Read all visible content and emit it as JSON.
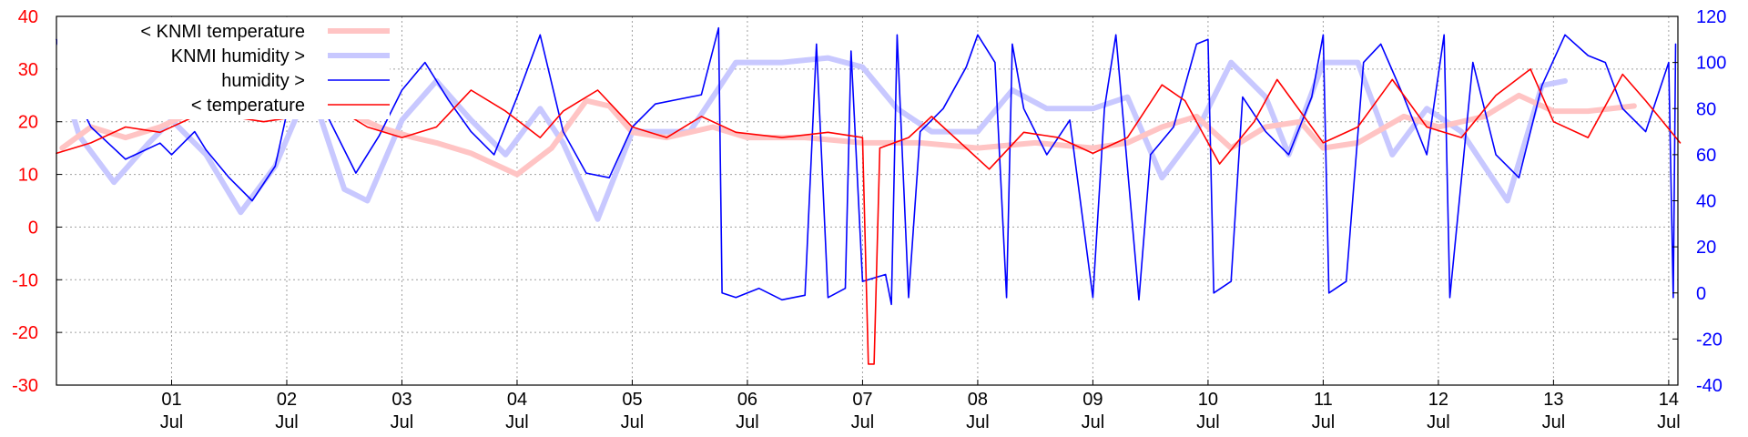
{
  "chart_data": {
    "type": "line",
    "title": "",
    "grid": true,
    "legend_position": "top-left",
    "x_ticks": [
      {
        "day": "01",
        "month": "Jul"
      },
      {
        "day": "02",
        "month": "Jul"
      },
      {
        "day": "03",
        "month": "Jul"
      },
      {
        "day": "04",
        "month": "Jul"
      },
      {
        "day": "05",
        "month": "Jul"
      },
      {
        "day": "06",
        "month": "Jul"
      },
      {
        "day": "07",
        "month": "Jul"
      },
      {
        "day": "08",
        "month": "Jul"
      },
      {
        "day": "09",
        "month": "Jul"
      },
      {
        "day": "10",
        "month": "Jul"
      },
      {
        "day": "11",
        "month": "Jul"
      },
      {
        "day": "12",
        "month": "Jul"
      },
      {
        "day": "13",
        "month": "Jul"
      },
      {
        "day": "14",
        "month": "Jul"
      }
    ],
    "x_range_days": [
      0.0,
      14.08
    ],
    "y_left": {
      "range": [
        -30,
        40
      ],
      "ticks": [
        -30,
        -20,
        -10,
        0,
        10,
        20,
        30,
        40
      ],
      "color": "#ff0000"
    },
    "y_right": {
      "range": [
        -40,
        120
      ],
      "ticks": [
        -40,
        -20,
        0,
        20,
        40,
        60,
        80,
        100,
        120
      ],
      "color": "#0000ff"
    },
    "series": [
      {
        "name": "< KNMI temperature",
        "axis": "left",
        "color": "#ffc4c4",
        "width": 6,
        "points": [
          [
            0.05,
            15
          ],
          [
            0.3,
            19
          ],
          [
            0.6,
            17
          ],
          [
            0.9,
            19
          ],
          [
            1.2,
            22
          ],
          [
            1.6,
            21
          ],
          [
            2.0,
            22
          ],
          [
            2.4,
            23
          ],
          [
            2.8,
            19
          ],
          [
            3.1,
            17
          ],
          [
            3.3,
            16
          ],
          [
            3.6,
            14
          ],
          [
            4.0,
            10
          ],
          [
            4.3,
            15
          ],
          [
            4.6,
            24
          ],
          [
            4.8,
            23
          ],
          [
            5.0,
            18
          ],
          [
            5.3,
            17
          ],
          [
            5.7,
            19
          ],
          [
            6.0,
            17
          ],
          [
            6.5,
            17
          ],
          [
            7.0,
            16
          ],
          [
            7.5,
            16
          ],
          [
            8.0,
            15
          ],
          [
            8.5,
            16
          ],
          [
            9.0,
            15
          ],
          [
            9.3,
            16
          ],
          [
            9.6,
            19
          ],
          [
            9.9,
            21
          ],
          [
            10.2,
            15
          ],
          [
            10.5,
            19
          ],
          [
            10.8,
            20
          ],
          [
            11.0,
            15
          ],
          [
            11.3,
            16
          ],
          [
            11.7,
            21
          ],
          [
            12.0,
            19
          ],
          [
            12.4,
            21
          ],
          [
            12.7,
            25
          ],
          [
            13.0,
            22
          ],
          [
            13.3,
            22
          ],
          [
            13.7,
            23
          ]
        ]
      },
      {
        "name": "KNMI humidity >",
        "axis": "right",
        "color": "#c8c8ff",
        "width": 6,
        "points": [
          [
            0.05,
            92
          ],
          [
            0.2,
            68
          ],
          [
            0.5,
            48
          ],
          [
            0.8,
            65
          ],
          [
            1.0,
            75
          ],
          [
            1.3,
            60
          ],
          [
            1.6,
            35
          ],
          [
            1.9,
            55
          ],
          [
            2.2,
            90
          ],
          [
            2.5,
            45
          ],
          [
            2.7,
            40
          ],
          [
            3.0,
            75
          ],
          [
            3.3,
            92
          ],
          [
            3.6,
            75
          ],
          [
            3.9,
            60
          ],
          [
            4.2,
            80
          ],
          [
            4.4,
            65
          ],
          [
            4.7,
            32
          ],
          [
            5.0,
            70
          ],
          [
            5.3,
            70
          ],
          [
            5.5,
            70
          ],
          [
            5.7,
            85
          ],
          [
            5.9,
            100
          ],
          [
            6.3,
            100
          ],
          [
            6.7,
            102
          ],
          [
            7.0,
            98
          ],
          [
            7.3,
            80
          ],
          [
            7.6,
            70
          ],
          [
            8.0,
            70
          ],
          [
            8.3,
            88
          ],
          [
            8.6,
            80
          ],
          [
            9.0,
            80
          ],
          [
            9.3,
            85
          ],
          [
            9.6,
            50
          ],
          [
            9.9,
            70
          ],
          [
            10.2,
            100
          ],
          [
            10.5,
            85
          ],
          [
            10.7,
            60
          ],
          [
            11.0,
            100
          ],
          [
            11.3,
            100
          ],
          [
            11.6,
            60
          ],
          [
            11.9,
            80
          ],
          [
            12.2,
            70
          ],
          [
            12.6,
            40
          ],
          [
            12.9,
            90
          ],
          [
            13.1,
            92
          ]
        ]
      },
      {
        "name": "humidity >",
        "axis": "right",
        "color": "#0000ff",
        "width": 1.6,
        "points": [
          [
            0.0,
            110
          ],
          [
            0.1,
            92
          ],
          [
            0.3,
            72
          ],
          [
            0.6,
            58
          ],
          [
            0.9,
            65
          ],
          [
            1.0,
            60
          ],
          [
            1.2,
            70
          ],
          [
            1.3,
            62
          ],
          [
            1.5,
            50
          ],
          [
            1.7,
            40
          ],
          [
            1.9,
            55
          ],
          [
            2.0,
            78
          ],
          [
            2.2,
            92
          ],
          [
            2.4,
            72
          ],
          [
            2.6,
            52
          ],
          [
            2.8,
            68
          ],
          [
            3.0,
            88
          ],
          [
            3.2,
            100
          ],
          [
            3.4,
            84
          ],
          [
            3.6,
            70
          ],
          [
            3.8,
            60
          ],
          [
            4.0,
            85
          ],
          [
            4.2,
            112
          ],
          [
            4.4,
            70
          ],
          [
            4.6,
            52
          ],
          [
            4.8,
            50
          ],
          [
            5.0,
            72
          ],
          [
            5.2,
            82
          ],
          [
            5.4,
            84
          ],
          [
            5.6,
            86
          ],
          [
            5.75,
            115
          ],
          [
            5.78,
            0
          ],
          [
            5.9,
            -2
          ],
          [
            6.1,
            2
          ],
          [
            6.3,
            -3
          ],
          [
            6.5,
            -1
          ],
          [
            6.6,
            108
          ],
          [
            6.7,
            -2
          ],
          [
            6.85,
            2
          ],
          [
            6.9,
            105
          ],
          [
            7.0,
            5
          ],
          [
            7.2,
            8
          ],
          [
            7.25,
            -5
          ],
          [
            7.3,
            112
          ],
          [
            7.4,
            -2
          ],
          [
            7.5,
            70
          ],
          [
            7.7,
            80
          ],
          [
            7.9,
            98
          ],
          [
            8.0,
            112
          ],
          [
            8.15,
            100
          ],
          [
            8.25,
            -2
          ],
          [
            8.3,
            108
          ],
          [
            8.4,
            80
          ],
          [
            8.6,
            60
          ],
          [
            8.8,
            75
          ],
          [
            9.0,
            -2
          ],
          [
            9.1,
            80
          ],
          [
            9.2,
            112
          ],
          [
            9.4,
            -3
          ],
          [
            9.5,
            60
          ],
          [
            9.7,
            72
          ],
          [
            9.9,
            108
          ],
          [
            10.0,
            110
          ],
          [
            10.05,
            0
          ],
          [
            10.2,
            5
          ],
          [
            10.3,
            85
          ],
          [
            10.5,
            70
          ],
          [
            10.7,
            60
          ],
          [
            10.9,
            85
          ],
          [
            11.0,
            112
          ],
          [
            11.05,
            0
          ],
          [
            11.2,
            5
          ],
          [
            11.35,
            100
          ],
          [
            11.5,
            108
          ],
          [
            11.7,
            85
          ],
          [
            11.9,
            60
          ],
          [
            12.05,
            112
          ],
          [
            12.1,
            -2
          ],
          [
            12.3,
            100
          ],
          [
            12.5,
            60
          ],
          [
            12.7,
            50
          ],
          [
            12.9,
            90
          ],
          [
            13.1,
            112
          ],
          [
            13.3,
            103
          ],
          [
            13.45,
            100
          ],
          [
            13.6,
            80
          ],
          [
            13.8,
            70
          ],
          [
            14.0,
            100
          ],
          [
            14.04,
            -2
          ],
          [
            14.06,
            108
          ]
        ]
      },
      {
        "name": "< temperature",
        "axis": "left",
        "color": "#ff0000",
        "width": 1.6,
        "points": [
          [
            0.0,
            14
          ],
          [
            0.3,
            16
          ],
          [
            0.6,
            19
          ],
          [
            0.9,
            18
          ],
          [
            1.2,
            21
          ],
          [
            1.5,
            21
          ],
          [
            1.8,
            20
          ],
          [
            2.1,
            21
          ],
          [
            2.4,
            23
          ],
          [
            2.7,
            19
          ],
          [
            3.0,
            17
          ],
          [
            3.3,
            19
          ],
          [
            3.6,
            26
          ],
          [
            3.9,
            22
          ],
          [
            4.2,
            17
          ],
          [
            4.4,
            22
          ],
          [
            4.7,
            26
          ],
          [
            5.0,
            19
          ],
          [
            5.3,
            17
          ],
          [
            5.6,
            21
          ],
          [
            5.9,
            18
          ],
          [
            6.3,
            17
          ],
          [
            6.7,
            18
          ],
          [
            7.0,
            17
          ],
          [
            7.05,
            -26
          ],
          [
            7.1,
            -26
          ],
          [
            7.15,
            15
          ],
          [
            7.4,
            17
          ],
          [
            7.6,
            21
          ],
          [
            7.9,
            15
          ],
          [
            8.1,
            11
          ],
          [
            8.4,
            18
          ],
          [
            8.7,
            17
          ],
          [
            9.0,
            14
          ],
          [
            9.3,
            17
          ],
          [
            9.6,
            27
          ],
          [
            9.8,
            24
          ],
          [
            10.1,
            12
          ],
          [
            10.4,
            20
          ],
          [
            10.6,
            28
          ],
          [
            10.8,
            22
          ],
          [
            11.0,
            16
          ],
          [
            11.3,
            19
          ],
          [
            11.6,
            28
          ],
          [
            11.9,
            19
          ],
          [
            12.2,
            17
          ],
          [
            12.5,
            25
          ],
          [
            12.8,
            30
          ],
          [
            13.0,
            20
          ],
          [
            13.3,
            17
          ],
          [
            13.6,
            29
          ],
          [
            13.8,
            24
          ],
          [
            14.1,
            16
          ]
        ]
      }
    ]
  }
}
